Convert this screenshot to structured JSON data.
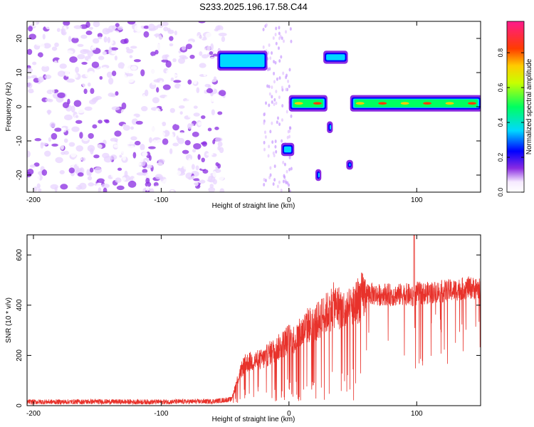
{
  "figure_title": "S233.2025.196.17.58.C44",
  "colors": {
    "axis": "#000000",
    "snr_line": "#e8322b",
    "spectro_scatter": "#7a2cf0"
  },
  "chart_data": [
    {
      "id": "spectrogram",
      "type": "heatmap",
      "title": "S233.2025.196.17.58.C44",
      "xlabel": "Height of straight line (km)",
      "ylabel": "Frequency (Hz)",
      "xlim": [
        -205,
        150
      ],
      "ylim": [
        -25,
        25
      ],
      "xticks": [
        -200,
        -100,
        0,
        100
      ],
      "xtick_labels": [
        "-200",
        "-100",
        "0",
        "100"
      ],
      "yticks": [
        -20,
        -10,
        0,
        10,
        20
      ],
      "ytick_labels": [
        "-20",
        "-10",
        "0",
        "10",
        "20"
      ],
      "colorbar": {
        "label": "Normalized spectral amplitude",
        "range": [
          0,
          0.98
        ],
        "ticks": [
          0,
          0.2,
          0.4,
          0.6,
          0.8
        ],
        "tick_labels": [
          "0.0",
          "0.2",
          "0.4",
          "0.6",
          "0.8"
        ],
        "colormap": [
          "#ffffff",
          "#7f00ff",
          "#0000ff",
          "#00ffff",
          "#00ff00",
          "#ffff00",
          "#ff7f00",
          "#ff0000",
          "#ff1493"
        ]
      },
      "noise_region": {
        "x": [
          -205,
          -50
        ],
        "y": [
          -25,
          25
        ],
        "amplitude": [
          0.02,
          0.2
        ]
      },
      "features": [
        {
          "x": [
            -55,
            -18
          ],
          "y": [
            11,
            16
          ],
          "amplitude": 0.35
        },
        {
          "x": [
            -5,
            3
          ],
          "y": [
            -14,
            -11
          ],
          "amplitude": 0.3
        },
        {
          "x": [
            1,
            29
          ],
          "y": [
            -1,
            3
          ],
          "amplitude": 0.55
        },
        {
          "x": 23,
          "y": -20,
          "amplitude": 0.15
        },
        {
          "x": 32,
          "y": -6,
          "amplitude": 0.15
        },
        {
          "x": [
            28,
            45
          ],
          "y": [
            13,
            16
          ],
          "amplitude": 0.35
        },
        {
          "x": [
            46,
            49
          ],
          "y": [
            -18,
            -16
          ],
          "amplitude": 0.3
        },
        {
          "x": [
            49,
            150
          ],
          "y": [
            -1,
            3
          ],
          "amplitude": 0.9
        }
      ],
      "grid": false
    },
    {
      "id": "snr",
      "type": "line",
      "xlabel": "Height of straight line (km)",
      "ylabel": "SNR (10 * v/v)",
      "xlim": [
        -205,
        150
      ],
      "ylim": [
        0,
        680
      ],
      "xticks": [
        -200,
        -100,
        0,
        100
      ],
      "xtick_labels": [
        "-200",
        "-100",
        "0",
        "100"
      ],
      "yticks": [
        0,
        200,
        400,
        600
      ],
      "ytick_labels": [
        "0",
        "200",
        "400",
        "600"
      ],
      "grid": false,
      "series": [
        {
          "x": [
            -205,
            -180,
            -150,
            -120,
            -100,
            -80,
            -60,
            -45,
            -40,
            -35,
            -30,
            -25,
            -20,
            -15,
            -10,
            -5,
            0,
            5,
            10,
            15,
            20,
            25,
            30,
            35,
            40,
            45,
            50,
            55,
            60,
            65,
            70,
            75,
            80,
            85,
            90,
            95,
            98,
            100,
            105,
            110,
            120,
            130,
            140,
            150
          ],
          "values": [
            15,
            15,
            16,
            15,
            15,
            16,
            17,
            25,
            110,
            170,
            180,
            185,
            190,
            215,
            230,
            250,
            275,
            270,
            300,
            330,
            330,
            360,
            380,
            410,
            400,
            380,
            400,
            440,
            450,
            445,
            440,
            445,
            440,
            440,
            445,
            440,
            420,
            450,
            445,
            450,
            455,
            460,
            470,
            465
          ]
        }
      ]
    }
  ]
}
